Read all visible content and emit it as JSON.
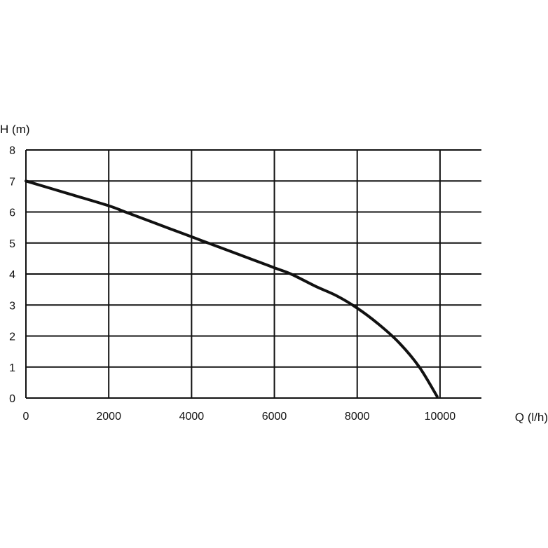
{
  "chart_data": {
    "type": "line",
    "title": "",
    "xlabel": "Q (l/h)",
    "ylabel": "H (m)",
    "xlim": [
      0,
      11000
    ],
    "ylim": [
      0,
      8
    ],
    "x_ticks": [
      "0",
      "2000",
      "4000",
      "6000",
      "8000",
      "10000"
    ],
    "y_ticks": [
      "0",
      "1",
      "2",
      "3",
      "4",
      "5",
      "6",
      "7",
      "8"
    ],
    "grid": true,
    "series": [
      {
        "x": [
          0,
          1000,
          2000,
          2400,
          3000,
          4000,
          4400,
          5000,
          6000,
          6400,
          7000,
          7500,
          8000,
          8500,
          9000,
          9500,
          9930
        ],
        "y": [
          7.0,
          6.6,
          6.2,
          6.0,
          5.7,
          5.2,
          5.0,
          4.7,
          4.2,
          4.0,
          3.6,
          3.3,
          2.9,
          2.4,
          1.8,
          1.0,
          0.05
        ]
      }
    ],
    "line_color": "#111111"
  }
}
